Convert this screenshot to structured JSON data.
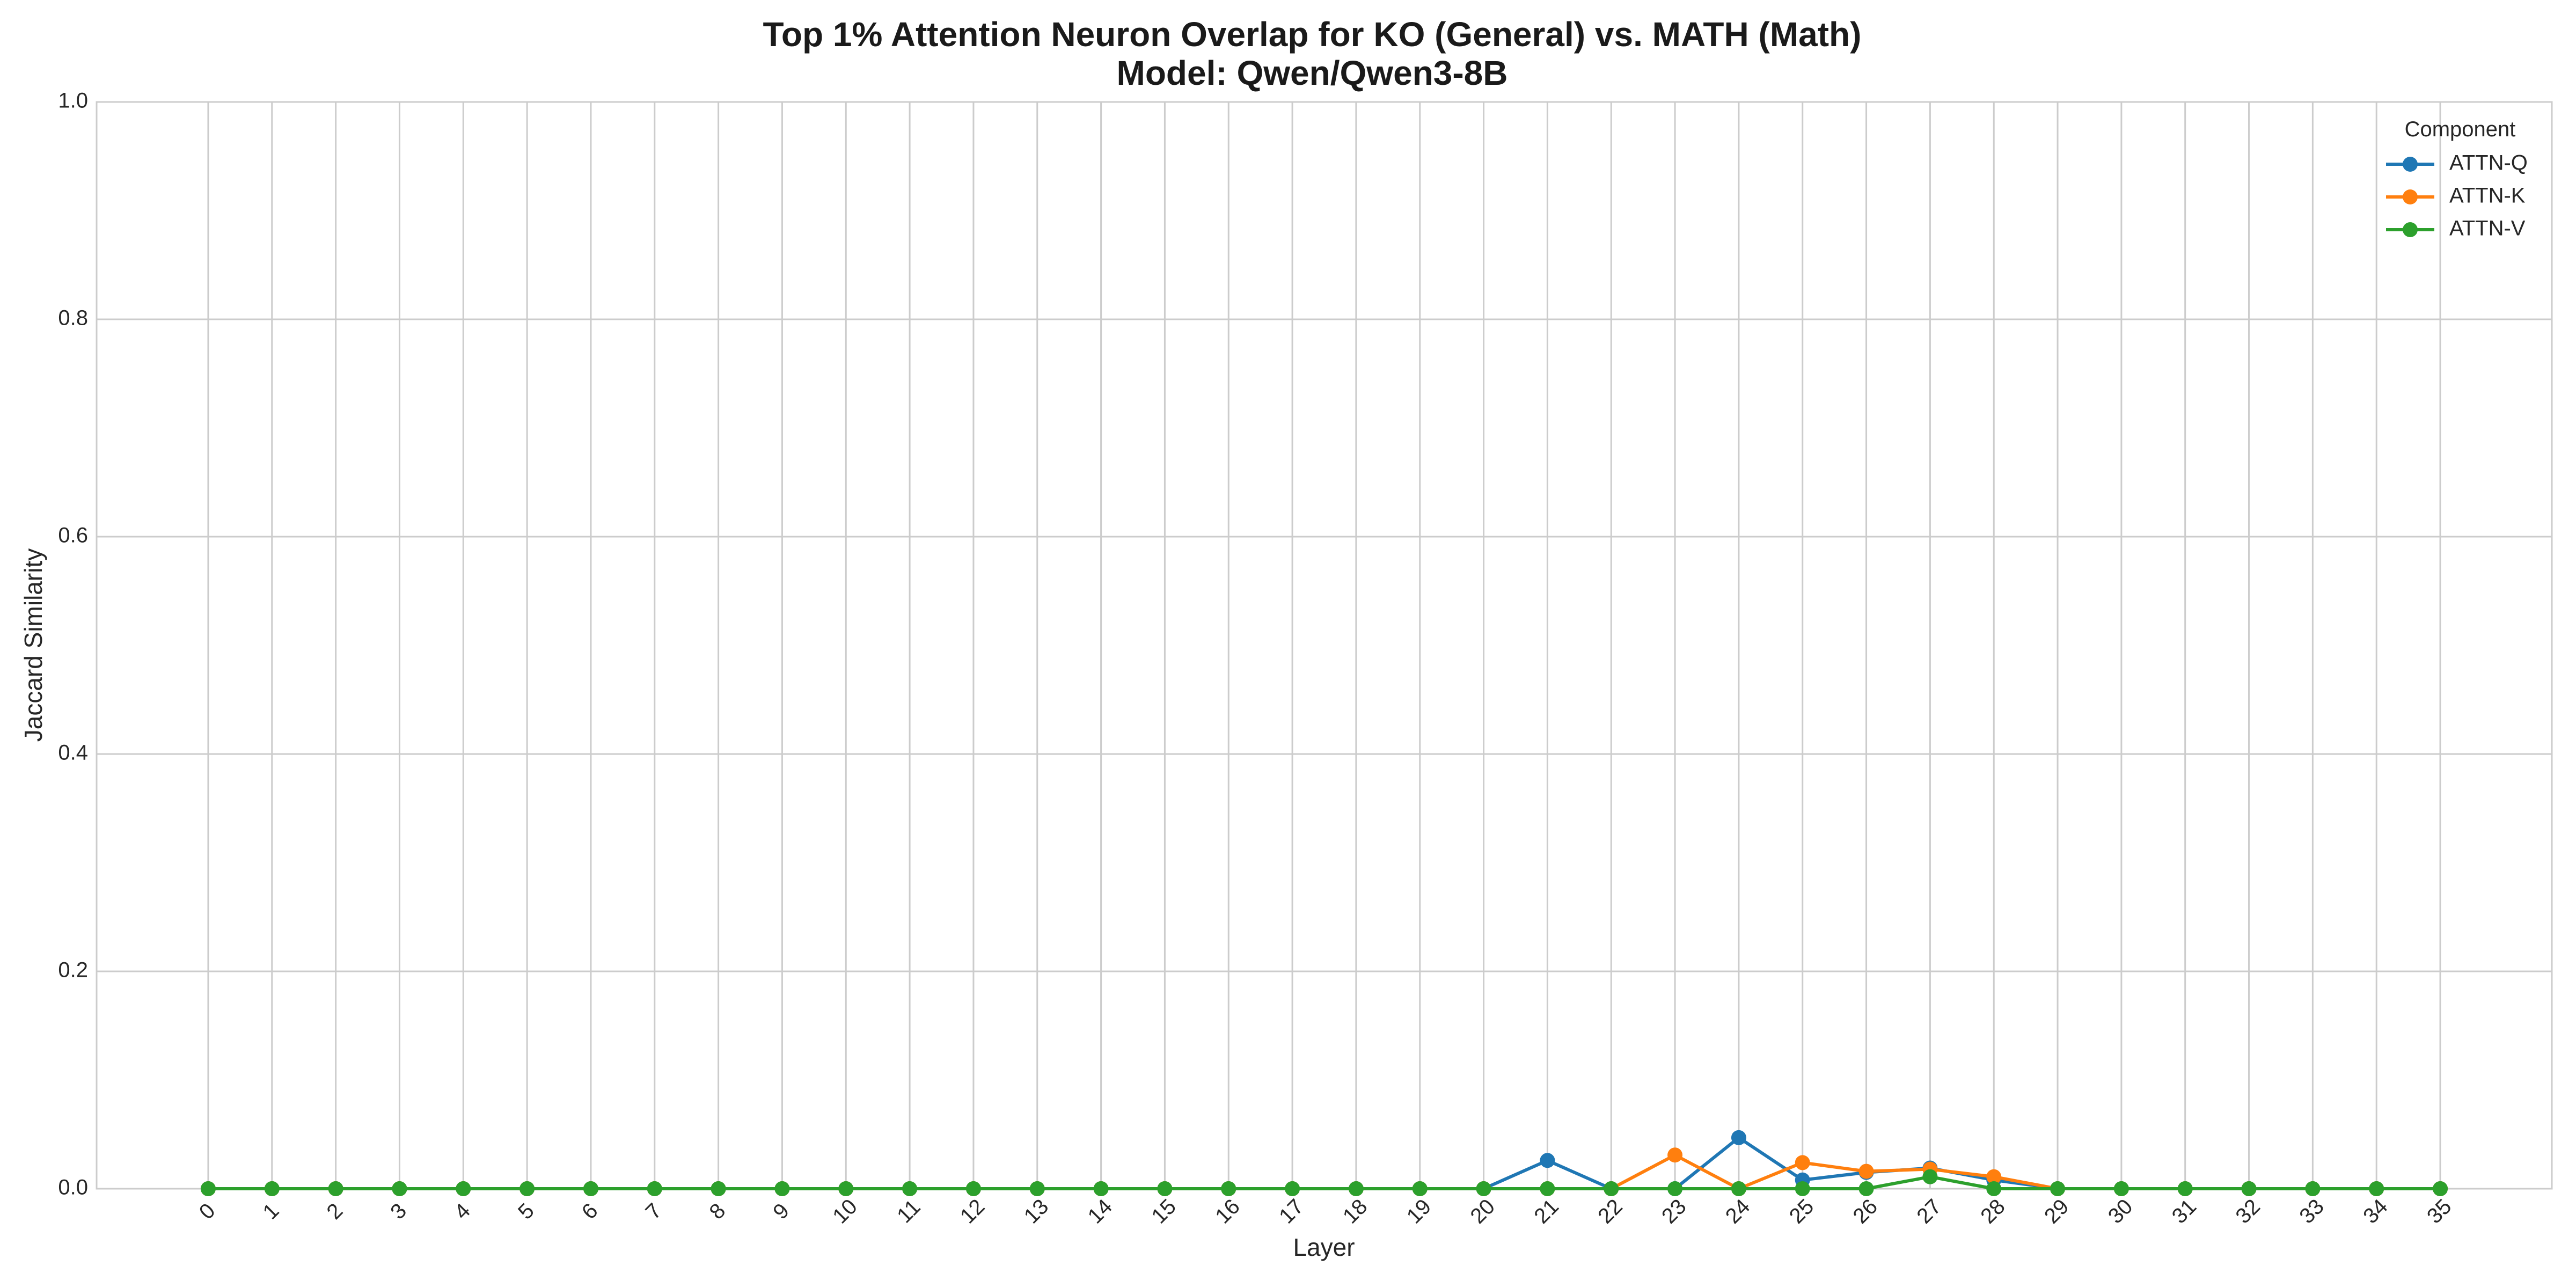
{
  "chart_data": {
    "type": "line",
    "title": "Top 1% Attention Neuron Overlap for KO (General) vs. MATH (Math)",
    "subtitle": "Model: Qwen/Qwen3-8B",
    "xlabel": "Layer",
    "ylabel": "Jaccard Similarity",
    "x": [
      0,
      1,
      2,
      3,
      4,
      5,
      6,
      7,
      8,
      9,
      10,
      11,
      12,
      13,
      14,
      15,
      16,
      17,
      18,
      19,
      20,
      21,
      22,
      23,
      24,
      25,
      26,
      27,
      28,
      29,
      30,
      31,
      32,
      33,
      34,
      35
    ],
    "xlim": [
      -1.75,
      36.75
    ],
    "ylim": [
      0,
      1
    ],
    "yticks": [
      0.0,
      0.2,
      0.4,
      0.6,
      0.8,
      1.0
    ],
    "ytick_labels": [
      "0.0",
      "0.2",
      "0.4",
      "0.6",
      "0.8",
      "1.0"
    ],
    "grid": true,
    "legend_title": "Component",
    "legend_position": "top-right",
    "series": [
      {
        "name": "ATTN-Q",
        "color": "#1f77b4",
        "values": [
          0,
          0,
          0,
          0,
          0,
          0,
          0,
          0,
          0,
          0,
          0,
          0,
          0,
          0,
          0,
          0,
          0,
          0,
          0,
          0,
          0,
          0.026,
          0,
          0,
          0.047,
          0.008,
          0.015,
          0.019,
          0.008,
          0,
          0,
          0,
          0,
          0,
          0,
          0
        ]
      },
      {
        "name": "ATTN-K",
        "color": "#ff7f0e",
        "values": [
          0,
          0,
          0,
          0,
          0,
          0,
          0,
          0,
          0,
          0,
          0,
          0,
          0,
          0,
          0,
          0,
          0,
          0,
          0,
          0,
          0,
          0,
          0,
          0.031,
          0,
          0.024,
          0.016,
          0.018,
          0.011,
          0,
          0,
          0,
          0,
          0,
          0,
          0
        ]
      },
      {
        "name": "ATTN-V",
        "color": "#2ca02c",
        "values": [
          0,
          0,
          0,
          0,
          0,
          0,
          0,
          0,
          0,
          0,
          0,
          0,
          0,
          0,
          0,
          0,
          0,
          0,
          0,
          0,
          0,
          0,
          0,
          0,
          0,
          0,
          0,
          0.011,
          0,
          0,
          0,
          0,
          0,
          0,
          0,
          0
        ]
      }
    ]
  }
}
